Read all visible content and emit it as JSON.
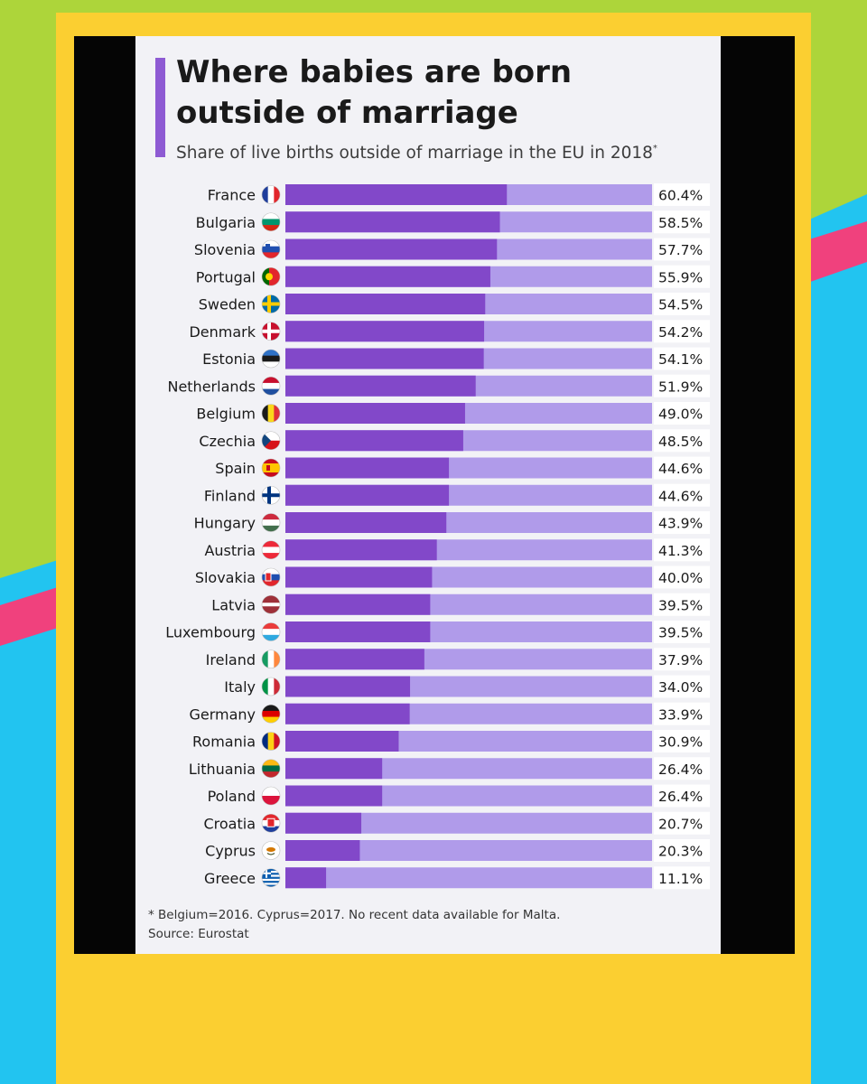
{
  "colors": {
    "background_green": "#ADD53A",
    "background_cyan": "#22C4F0",
    "stripe_pink": "#F0417D",
    "card_yellow": "#FBCF31",
    "frame_black": "#050505",
    "panel": "#F2F2F6",
    "bar_dark": "#8248C9",
    "bar_light": "#B09BEA",
    "value_box": "#FFFFFF"
  },
  "chart_data": {
    "type": "bar",
    "orientation": "horizontal",
    "title_line1": "Where babies are born",
    "title_line2": "outside of marriage",
    "subtitle": "Share of live births outside of marriage in the EU in 2018",
    "subtitle_marker": "*",
    "categories": [
      "France",
      "Bulgaria",
      "Slovenia",
      "Portugal",
      "Sweden",
      "Denmark",
      "Estonia",
      "Netherlands",
      "Belgium",
      "Czechia",
      "Spain",
      "Finland",
      "Hungary",
      "Austria",
      "Slovakia",
      "Latvia",
      "Luxembourg",
      "Ireland",
      "Italy",
      "Germany",
      "Romania",
      "Lithuania",
      "Poland",
      "Croatia",
      "Cyprus",
      "Greece"
    ],
    "values": [
      60.4,
      58.5,
      57.7,
      55.9,
      54.5,
      54.2,
      54.1,
      51.9,
      49.0,
      48.5,
      44.6,
      44.6,
      43.9,
      41.3,
      40.0,
      39.5,
      39.5,
      37.9,
      34.0,
      33.9,
      30.9,
      26.4,
      26.4,
      20.7,
      20.3,
      11.1
    ],
    "value_labels": [
      "60.4%",
      "58.5%",
      "57.7%",
      "55.9%",
      "54.5%",
      "54.2%",
      "54.1%",
      "51.9%",
      "49.0%",
      "48.5%",
      "44.6%",
      "44.6%",
      "43.9%",
      "41.3%",
      "40.0%",
      "39.5%",
      "39.5%",
      "37.9%",
      "34.0%",
      "33.9%",
      "30.9%",
      "26.4%",
      "26.4%",
      "20.7%",
      "20.3%",
      "11.1%"
    ],
    "flag_icons": [
      "france-flag-icon",
      "bulgaria-flag-icon",
      "slovenia-flag-icon",
      "portugal-flag-icon",
      "sweden-flag-icon",
      "denmark-flag-icon",
      "estonia-flag-icon",
      "netherlands-flag-icon",
      "belgium-flag-icon",
      "czechia-flag-icon",
      "spain-flag-icon",
      "finland-flag-icon",
      "hungary-flag-icon",
      "austria-flag-icon",
      "slovakia-flag-icon",
      "latvia-flag-icon",
      "luxembourg-flag-icon",
      "ireland-flag-icon",
      "italy-flag-icon",
      "germany-flag-icon",
      "romania-flag-icon",
      "lithuania-flag-icon",
      "poland-flag-icon",
      "croatia-flag-icon",
      "cyprus-flag-icon",
      "greece-flag-icon"
    ],
    "xlim": [
      0,
      100
    ],
    "grid": false,
    "legend": "none",
    "footnote": "* Belgium=2016. Cyprus=2017. No recent data available for Malta.",
    "source": "Source: Eurostat"
  }
}
